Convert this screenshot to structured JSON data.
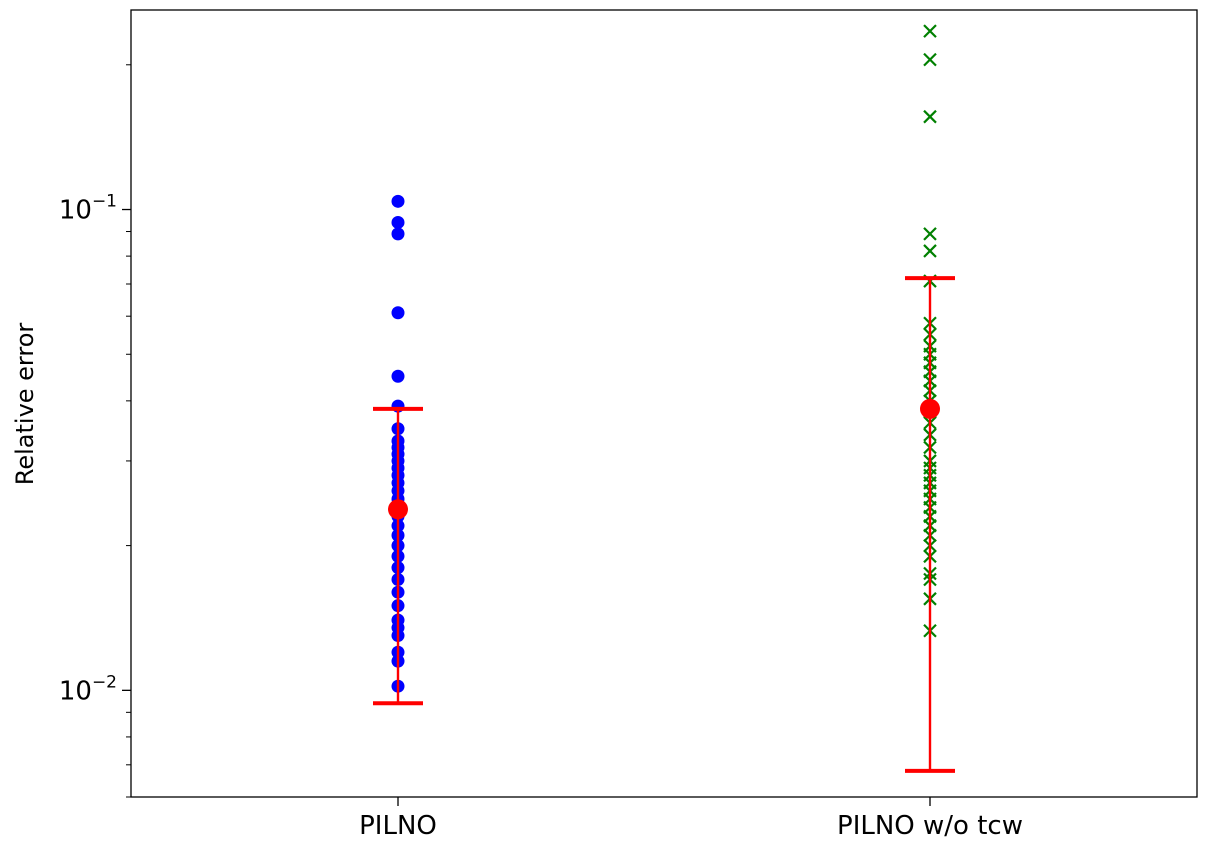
{
  "chart_data": {
    "type": "scatter",
    "ylabel": "Relative error",
    "xlabel": "",
    "yscale": "log",
    "ylim": [
      0.006,
      0.26
    ],
    "y_ticks": [
      {
        "value": 0.1,
        "base": "10",
        "exp": "−1"
      },
      {
        "value": 0.01,
        "base": "10",
        "exp": "−2"
      }
    ],
    "categories": [
      "PILNO",
      "PILNO w/o tcw"
    ],
    "series": [
      {
        "category": "PILNO",
        "marker": "circle",
        "color": "#0000ff",
        "values": [
          0.104,
          0.094,
          0.089,
          0.061,
          0.045,
          0.039,
          0.035,
          0.033,
          0.032,
          0.031,
          0.03,
          0.029,
          0.028,
          0.027,
          0.026,
          0.025,
          0.024,
          0.023,
          0.022,
          0.021,
          0.02,
          0.019,
          0.018,
          0.017,
          0.016,
          0.015,
          0.014,
          0.0135,
          0.013,
          0.012,
          0.0115,
          0.0102
        ],
        "mean": 0.0238,
        "err_low": 0.0094,
        "err_high": 0.0385
      },
      {
        "category": "PILNO w/o tcw",
        "marker": "x",
        "color": "#008000",
        "values": [
          0.235,
          0.205,
          0.156,
          0.089,
          0.082,
          0.071,
          0.058,
          0.055,
          0.052,
          0.05,
          0.048,
          0.046,
          0.044,
          0.042,
          0.04,
          0.038,
          0.036,
          0.034,
          0.032,
          0.03,
          0.029,
          0.028,
          0.027,
          0.026,
          0.025,
          0.024,
          0.023,
          0.022,
          0.021,
          0.02,
          0.019,
          0.0175,
          0.017,
          0.0155,
          0.0133
        ],
        "mean": 0.0385,
        "err_low": 0.0068,
        "err_high": 0.072
      }
    ],
    "summary_color": "#ff0000",
    "grid": false,
    "legend": "none"
  }
}
